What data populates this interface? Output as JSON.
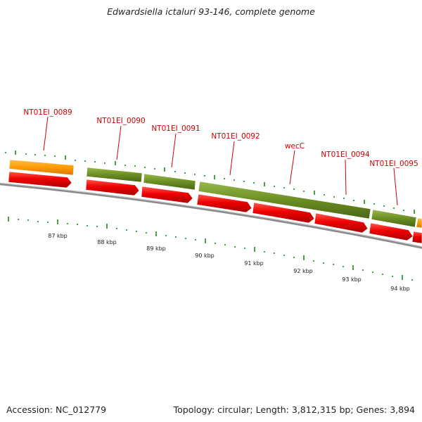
{
  "title": "Edwardsiella ictaluri 93-146, complete genome",
  "footer": {
    "accession": "Accession: NC_012779",
    "info": "Topology: circular; Length: 3,812,315 bp; Genes: 3,894"
  },
  "colors": {
    "gene_label": "#cc0000",
    "cds": "#e00000",
    "gene_green": "#6b8e23",
    "gene_orange": "#ff9a00",
    "backbone": "#8a8a8a",
    "tick": "#1a8a1a",
    "text": "#222222"
  },
  "scale_labels": [
    "87 kbp",
    "88 kbp",
    "89 kbp",
    "90 kbp",
    "91 kbp",
    "92 kbp",
    "93 kbp",
    "94 kbp"
  ],
  "gene_labels": [
    "NT01EI_0089",
    "NT01EI_0090",
    "NT01EI_0091",
    "NT01EI_0092",
    "wecC",
    "NT01EI_0094",
    "NT01EI_0095"
  ]
}
